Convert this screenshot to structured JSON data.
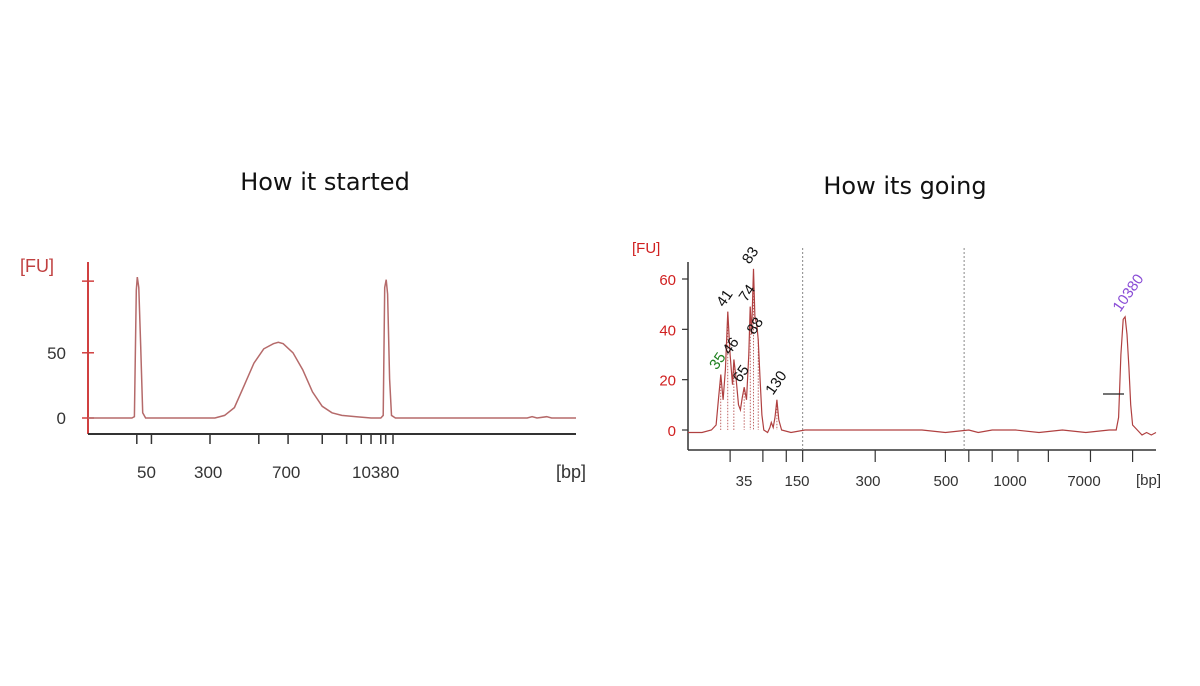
{
  "panels": {
    "left_title": "How it started",
    "right_title": "How its going"
  },
  "chart_data": [
    {
      "type": "line",
      "title": "How it started",
      "ylabel": "[FU]",
      "xlabel": "[bp]",
      "yticks": [
        0,
        50
      ],
      "ylim": [
        0,
        115
      ],
      "xtick_labels": [
        "50",
        "300",
        "700",
        "10380"
      ],
      "grid": false,
      "colors": {
        "trace": "#b56a6a",
        "axis": "#333333",
        "y_axis": "#d04040",
        "ylabel": "#c04040"
      },
      "x_units_note": "relative position along the bp axis (0 to 1)",
      "series": [
        {
          "points": [
            [
              0,
              0
            ],
            [
              0.09,
              0
            ],
            [
              0.095,
              1
            ],
            [
              0.099,
              98
            ],
            [
              0.101,
              108
            ],
            [
              0.104,
              100
            ],
            [
              0.108,
              55
            ],
            [
              0.112,
              4
            ],
            [
              0.118,
              0
            ],
            [
              0.26,
              0
            ],
            [
              0.28,
              2
            ],
            [
              0.3,
              8
            ],
            [
              0.32,
              25
            ],
            [
              0.34,
              42
            ],
            [
              0.36,
              53
            ],
            [
              0.38,
              57
            ],
            [
              0.39,
              58
            ],
            [
              0.4,
              57
            ],
            [
              0.42,
              50
            ],
            [
              0.44,
              37
            ],
            [
              0.46,
              20
            ],
            [
              0.48,
              9
            ],
            [
              0.5,
              4
            ],
            [
              0.52,
              2
            ],
            [
              0.55,
              1
            ],
            [
              0.58,
              0
            ],
            [
              0.6,
              0
            ],
            [
              0.605,
              2
            ],
            [
              0.608,
              100
            ],
            [
              0.611,
              106
            ],
            [
              0.614,
              95
            ],
            [
              0.618,
              30
            ],
            [
              0.622,
              2
            ],
            [
              0.63,
              0
            ],
            [
              0.9,
              0
            ],
            [
              0.91,
              1
            ],
            [
              0.92,
              0
            ],
            [
              0.94,
              1
            ],
            [
              0.95,
              0
            ],
            [
              1.0,
              0
            ]
          ]
        }
      ]
    },
    {
      "type": "line",
      "title": "How its going",
      "ylabel": "[FU]",
      "xlabel": "[bp]",
      "yticks": [
        0,
        20,
        40,
        60
      ],
      "ylim": [
        -5,
        67
      ],
      "xtick_labels": [
        "35",
        "150",
        "300",
        "500",
        "1000",
        "7000"
      ],
      "grid": false,
      "colors": {
        "trace": "#b04040",
        "axis": "#333333",
        "ylabel": "#d02020",
        "marker_green": "#208020",
        "marker_purple": "#8a4dd6",
        "guide": "#888888"
      },
      "x_units_note": "relative position along the bp axis (0 to 1)",
      "peak_labels": [
        {
          "text": "35",
          "x": 0.07,
          "y": 22,
          "color": "green"
        },
        {
          "text": "41",
          "x": 0.085,
          "y": 47,
          "color": "black"
        },
        {
          "text": "46",
          "x": 0.098,
          "y": 28,
          "color": "black"
        },
        {
          "text": "65",
          "x": 0.12,
          "y": 17,
          "color": "black"
        },
        {
          "text": "74",
          "x": 0.133,
          "y": 49,
          "color": "black"
        },
        {
          "text": "83",
          "x": 0.14,
          "y": 64,
          "color": "black"
        },
        {
          "text": "88",
          "x": 0.15,
          "y": 36,
          "color": "black"
        },
        {
          "text": "130",
          "x": 0.19,
          "y": 12,
          "color": "black"
        },
        {
          "text": "10380",
          "x": 0.932,
          "y": 45,
          "color": "purple"
        }
      ],
      "series": [
        {
          "points": [
            [
              0,
              -1
            ],
            [
              0.03,
              -1
            ],
            [
              0.05,
              0
            ],
            [
              0.06,
              2
            ],
            [
              0.065,
              12
            ],
            [
              0.07,
              22
            ],
            [
              0.075,
              12
            ],
            [
              0.08,
              24
            ],
            [
              0.085,
              47
            ],
            [
              0.09,
              30
            ],
            [
              0.095,
              18
            ],
            [
              0.098,
              28
            ],
            [
              0.103,
              20
            ],
            [
              0.108,
              10
            ],
            [
              0.112,
              8
            ],
            [
              0.116,
              13
            ],
            [
              0.12,
              17
            ],
            [
              0.125,
              12
            ],
            [
              0.13,
              30
            ],
            [
              0.133,
              49
            ],
            [
              0.136,
              38
            ],
            [
              0.14,
              64
            ],
            [
              0.143,
              45
            ],
            [
              0.147,
              42
            ],
            [
              0.15,
              36
            ],
            [
              0.154,
              20
            ],
            [
              0.158,
              6
            ],
            [
              0.162,
              0
            ],
            [
              0.17,
              -1
            ],
            [
              0.175,
              1
            ],
            [
              0.178,
              3
            ],
            [
              0.182,
              1
            ],
            [
              0.186,
              5
            ],
            [
              0.19,
              12
            ],
            [
              0.194,
              4
            ],
            [
              0.2,
              0
            ],
            [
              0.22,
              -1
            ],
            [
              0.25,
              0
            ],
            [
              0.3,
              0
            ],
            [
              0.4,
              0
            ],
            [
              0.5,
              0
            ],
            [
              0.55,
              -1
            ],
            [
              0.6,
              0
            ],
            [
              0.62,
              -1
            ],
            [
              0.65,
              0
            ],
            [
              0.7,
              0
            ],
            [
              0.75,
              -1
            ],
            [
              0.8,
              0
            ],
            [
              0.85,
              -1
            ],
            [
              0.9,
              0
            ],
            [
              0.915,
              0
            ],
            [
              0.92,
              5
            ],
            [
              0.925,
              30
            ],
            [
              0.93,
              44
            ],
            [
              0.934,
              45
            ],
            [
              0.938,
              38
            ],
            [
              0.942,
              25
            ],
            [
              0.946,
              10
            ],
            [
              0.95,
              2
            ],
            [
              0.96,
              0
            ],
            [
              0.97,
              -2
            ],
            [
              0.98,
              -1
            ],
            [
              0.99,
              -2
            ],
            [
              1.0,
              -1
            ]
          ]
        }
      ],
      "guides": [
        0.245,
        0.59
      ],
      "tick_positions": [
        0.09,
        0.16,
        0.21,
        0.245,
        0.4,
        0.55,
        0.6,
        0.65,
        0.705,
        0.77,
        0.86,
        0.95
      ]
    }
  ]
}
